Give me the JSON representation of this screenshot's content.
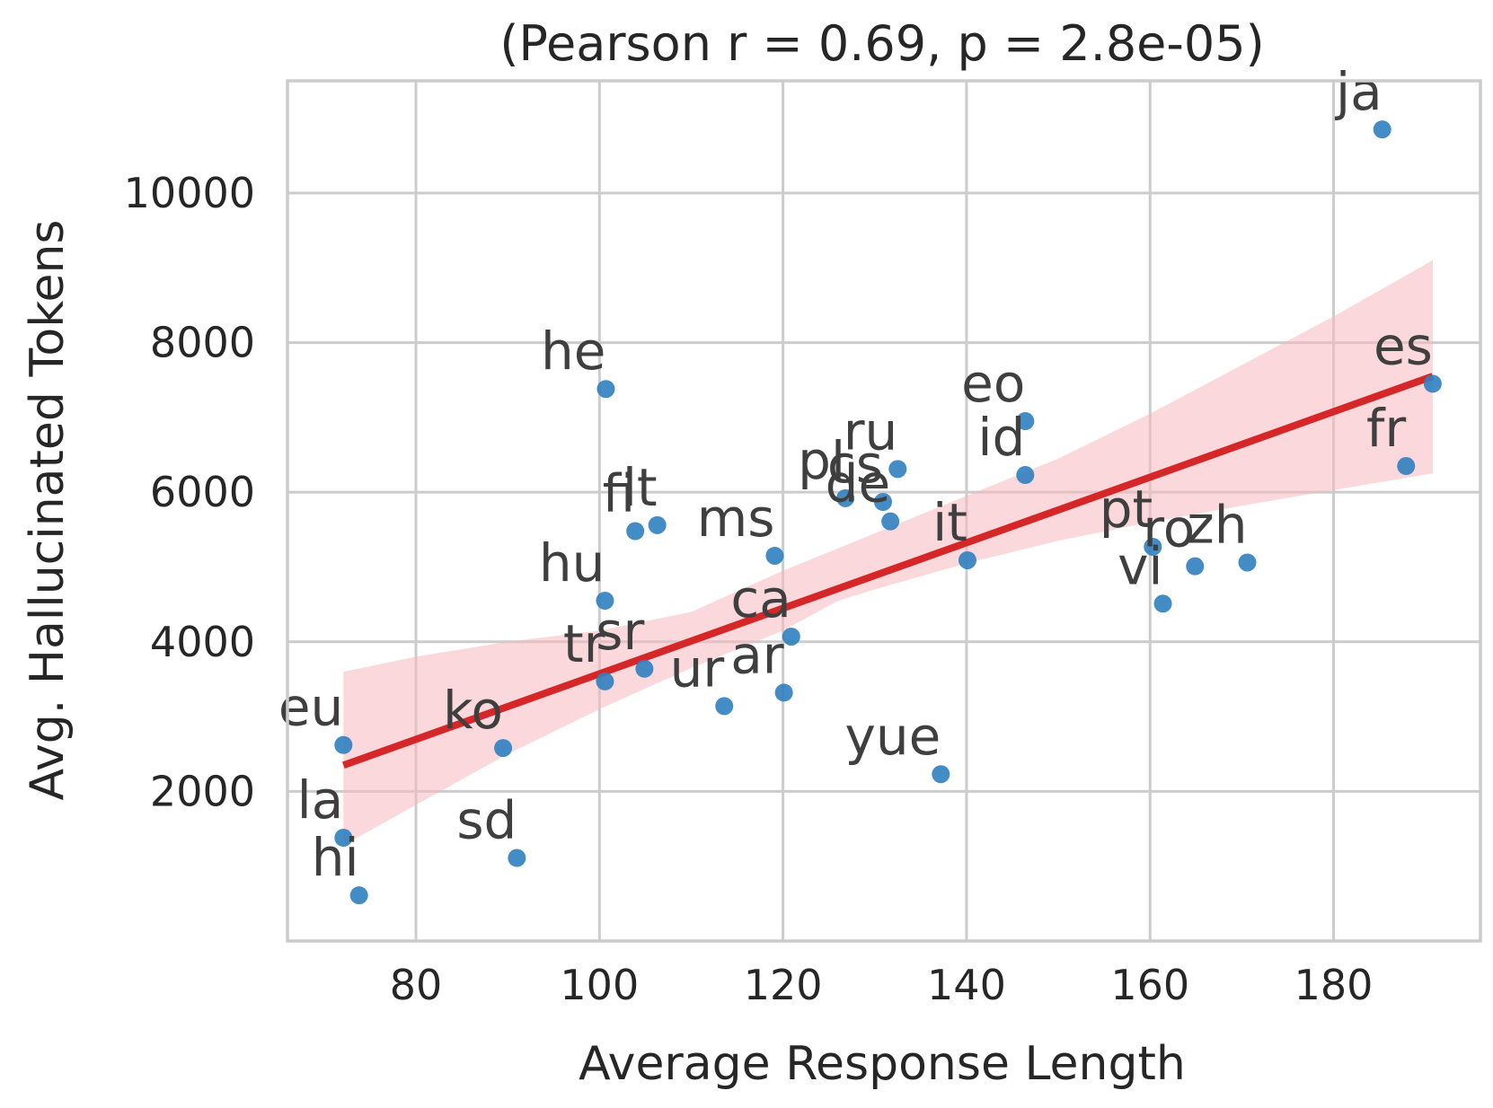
{
  "chart_data": {
    "type": "scatter",
    "title": "(Pearson r = 0.69, p = 2.8e-05)",
    "xlabel": "Average Response Length",
    "ylabel": "Avg. Hallucinated Tokens",
    "xlim": [
      66,
      196
    ],
    "ylim": [
      0,
      11500
    ],
    "x_ticks": [
      80,
      100,
      120,
      140,
      160,
      180
    ],
    "y_ticks": [
      2000,
      4000,
      6000,
      8000,
      10000
    ],
    "x_tick_labels": [
      "80",
      "100",
      "120",
      "140",
      "160",
      "180"
    ],
    "y_tick_labels": [
      "2000",
      "4000",
      "6000",
      "8000",
      "10000"
    ],
    "grid": true,
    "colors": {
      "points": "#2f7fbf",
      "regression_line": "#d62728",
      "confidence_band": "#f5b8bd"
    },
    "points": [
      {
        "label": "ja",
        "x": 185.3,
        "y": 10850
      },
      {
        "label": "es",
        "x": 190.8,
        "y": 7450
      },
      {
        "label": "fr",
        "x": 187.9,
        "y": 6350
      },
      {
        "label": "he",
        "x": 100.7,
        "y": 7380
      },
      {
        "label": "eo",
        "x": 146.4,
        "y": 6950
      },
      {
        "label": "id",
        "x": 146.4,
        "y": 6230
      },
      {
        "label": "ru",
        "x": 132.5,
        "y": 6310
      },
      {
        "label": "pl",
        "x": 126.8,
        "y": 5920
      },
      {
        "label": "cs",
        "x": 130.9,
        "y": 5870
      },
      {
        "label": "de",
        "x": 131.7,
        "y": 5610
      },
      {
        "label": "fi",
        "x": 103.9,
        "y": 5480
      },
      {
        "label": "lt",
        "x": 106.3,
        "y": 5560
      },
      {
        "label": "ms",
        "x": 119.1,
        "y": 5150
      },
      {
        "label": "it",
        "x": 140.1,
        "y": 5090
      },
      {
        "label": "pt",
        "x": 160.3,
        "y": 5270
      },
      {
        "label": "ro",
        "x": 164.9,
        "y": 5010
      },
      {
        "label": "zh",
        "x": 170.6,
        "y": 5060
      },
      {
        "label": "vi",
        "x": 161.4,
        "y": 4510
      },
      {
        "label": "hu",
        "x": 100.6,
        "y": 4550
      },
      {
        "label": "ca",
        "x": 120.9,
        "y": 4070
      },
      {
        "label": "sr",
        "x": 104.9,
        "y": 3640
      },
      {
        "label": "tr",
        "x": 100.6,
        "y": 3470
      },
      {
        "label": "ur",
        "x": 113.6,
        "y": 3140
      },
      {
        "label": "ar",
        "x": 120.1,
        "y": 3320
      },
      {
        "label": "eu",
        "x": 72.1,
        "y": 2620
      },
      {
        "label": "ko",
        "x": 89.5,
        "y": 2580
      },
      {
        "label": "yue",
        "x": 137.2,
        "y": 2230
      },
      {
        "label": "la",
        "x": 72.1,
        "y": 1380
      },
      {
        "label": "sd",
        "x": 91.0,
        "y": 1110
      },
      {
        "label": "hi",
        "x": 73.8,
        "y": 610
      }
    ],
    "regression": {
      "x_start": 72.1,
      "y_start": 2350,
      "x_end": 190.8,
      "y_end": 7550
    },
    "confidence_band": {
      "x": [
        72.1,
        80,
        90,
        100,
        110,
        120,
        126,
        130,
        140,
        150,
        160,
        170,
        180,
        190.8
      ],
      "lower": [
        1280,
        1820,
        2500,
        3100,
        3650,
        4150,
        4550,
        4700,
        5050,
        5350,
        5600,
        5820,
        6030,
        6250
      ],
      "upper": [
        3600,
        3800,
        4000,
        4150,
        4400,
        4950,
        5250,
        5450,
        5950,
        6450,
        7050,
        7700,
        8350,
        9100
      ]
    }
  }
}
